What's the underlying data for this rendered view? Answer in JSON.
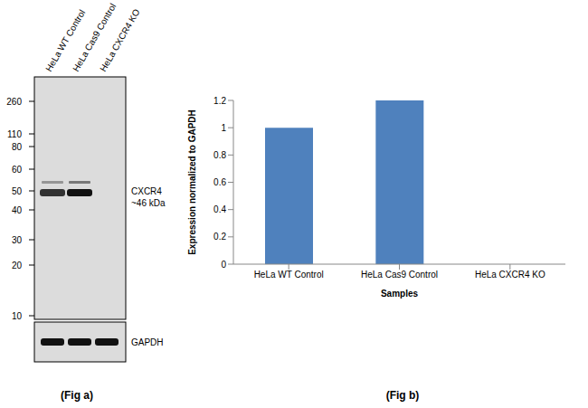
{
  "panels": [
    "(Fig a)",
    "(Fig b)"
  ],
  "blot": {
    "lanes": [
      "HeLa WT Control",
      "HeLa Cas9 Control",
      "HeLa CXCR4 KO"
    ],
    "markers": [
      260,
      110,
      80,
      60,
      50,
      40,
      30,
      20,
      10
    ],
    "band_label": "CXCR4",
    "band_size": "~46 kDa",
    "loading_control": "GAPDH"
  },
  "chart_data": {
    "type": "bar",
    "categories": [
      "HeLa WT Control",
      "HeLa Cas9 Control",
      "HeLa CXCR4 KO"
    ],
    "values": [
      1,
      1.2,
      0
    ],
    "color": "#4f81bd",
    "x_label": "Samples",
    "y_label": "Expression  normalized to GAPDH",
    "ylim": [
      0,
      1.2
    ],
    "yticks": [
      0,
      0.2,
      0.4,
      0.6,
      0.8,
      1,
      1.2
    ],
    "grid": false
  }
}
